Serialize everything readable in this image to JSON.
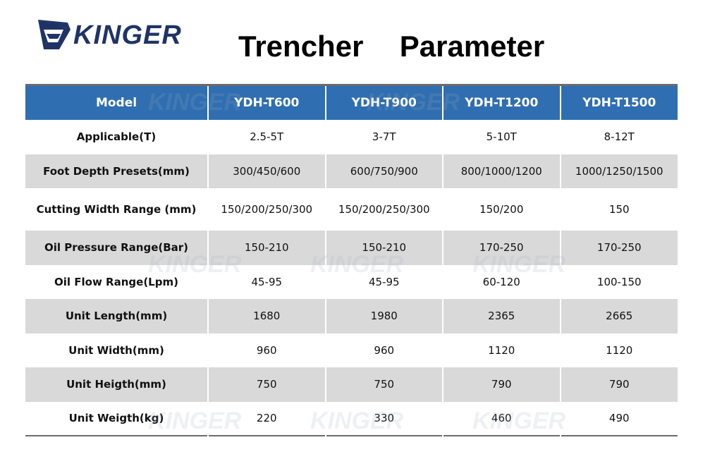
{
  "logo_text": "KINGER",
  "title": "Trencher  Parameter",
  "table": {
    "headers": [
      "Model",
      "YDH-T600",
      "YDH-T900",
      "YDH-T1200",
      "YDH-T1500"
    ],
    "rows": [
      [
        "Applicable(T)",
        "2.5-5T",
        "3-7T",
        "5-10T",
        "8-12T"
      ],
      [
        "Foot Depth Presets(mm)",
        "300/450/600",
        "600/750/900",
        "800/1000/1200",
        "1000/1250/1500"
      ],
      [
        "Cutting Width Range (mm)",
        "150/200/250/300",
        "150/200/250/300",
        "150/200",
        "150"
      ],
      [
        "Oil Pressure Range(Bar)",
        "150-210",
        "150-210",
        "170-250",
        "170-250"
      ],
      [
        "Oil Flow Range(Lpm)",
        "45-95",
        "45-95",
        "60-120",
        "100-150"
      ],
      [
        "Unit Length(mm)",
        "1680",
        "1980",
        "2365",
        "2665"
      ],
      [
        "Unit Width(mm)",
        "960",
        "960",
        "1120",
        "1120"
      ],
      [
        "Unit Heigth(mm)",
        "750",
        "750",
        "790",
        "790"
      ],
      [
        "Unit Weigth(kg)",
        "220",
        "330",
        "460",
        "490"
      ]
    ]
  },
  "colors": {
    "header_bg": "#2f6eb1",
    "alt_row": "#d9d9d9",
    "logo": "#1f3466"
  }
}
